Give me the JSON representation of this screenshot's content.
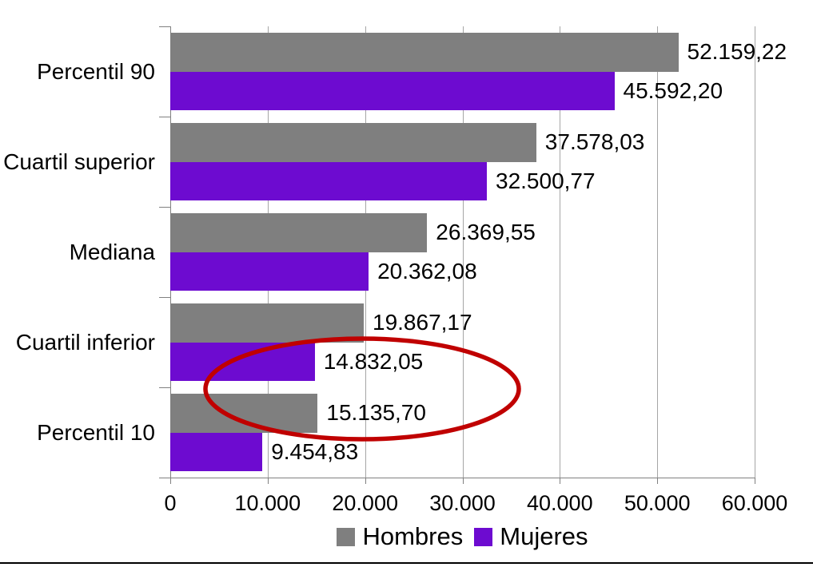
{
  "chart_data": {
    "type": "bar",
    "orientation": "horizontal",
    "title": "",
    "xlabel": "",
    "ylabel": "",
    "categories": [
      "Percentil 90",
      "Cuartil superior",
      "Mediana",
      "Cuartil inferior",
      "Percentil 10"
    ],
    "series": [
      {
        "name": "Hombres",
        "color": "#7F7F7F",
        "values": [
          52159.22,
          37578.03,
          26369.55,
          19867.17,
          15135.7
        ],
        "value_labels": [
          "52.159,22",
          "37.578,03",
          "26.369,55",
          "19.867,17",
          "15.135,70"
        ]
      },
      {
        "name": "Mujeres",
        "color": "#6D0BD0",
        "values": [
          45592.2,
          32500.77,
          20362.08,
          14832.05,
          9454.83
        ],
        "value_labels": [
          "45.592,20",
          "32.500,77",
          "20.362,08",
          "14.832,05",
          "9.454,83"
        ]
      }
    ],
    "xlim": [
      0,
      60000
    ],
    "x_ticks": [
      0,
      10000,
      20000,
      30000,
      40000,
      50000,
      60000
    ],
    "x_tick_labels": [
      "0",
      "10.000",
      "20.000",
      "30.000",
      "40.000",
      "50.000",
      "60.000"
    ],
    "grid": true,
    "legend_position": "bottom",
    "annotation": {
      "shape": "ellipse",
      "color": "#C00000",
      "circled_values": [
        "14.832,05",
        "15.135,70"
      ]
    }
  },
  "colors": {
    "hombres": "#7F7F7F",
    "mujeres": "#6D0BD0",
    "annotation": "#C00000",
    "gridline": "#A6A6A6",
    "axis": "#808080",
    "background": "#FFFFFF",
    "bottom_rule": "#000000"
  }
}
